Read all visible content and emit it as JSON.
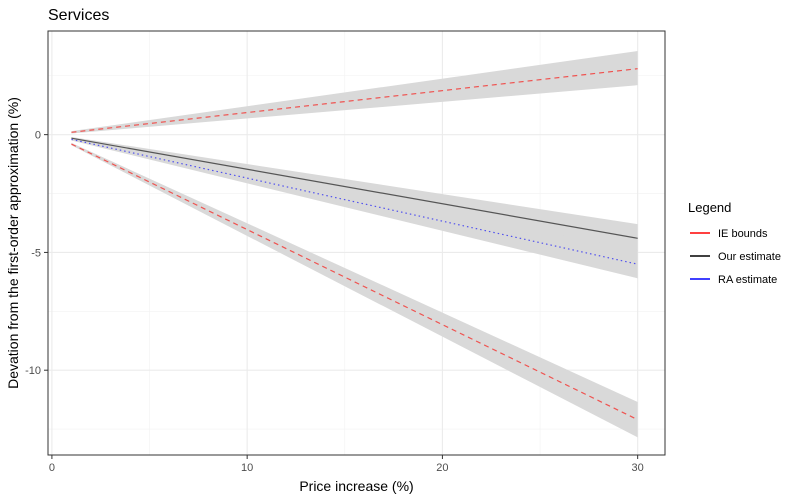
{
  "chart_data": {
    "type": "line",
    "title": "Services",
    "xlabel": "Price increase (%)",
    "ylabel": "Devation from the first-order approximation (%)",
    "xlim": [
      -0.2,
      31.4
    ],
    "ylim": [
      -13.6,
      4.4
    ],
    "x_ticks": [
      0,
      10,
      20,
      30
    ],
    "x_tick_labels": [
      "0",
      "10",
      "20",
      "30"
    ],
    "y_ticks": [
      -10,
      -5,
      0
    ],
    "y_tick_labels": [
      "-10",
      "-5",
      "0"
    ],
    "grid": true,
    "legend": {
      "title": "Legend",
      "position": "right",
      "entries": [
        {
          "label": "IE bounds",
          "color": "#ff0000"
        },
        {
          "label": "Our estimate",
          "color": "#000000"
        },
        {
          "label": "RA estimate",
          "color": "#0000ff"
        }
      ]
    },
    "x": [
      1,
      30
    ],
    "series": [
      {
        "name": "IE bounds",
        "style": "dashed",
        "color": "#ef5350",
        "values": [
          0.1,
          2.8
        ],
        "band_lower": [
          0.05,
          2.1
        ],
        "band_upper": [
          0.15,
          3.55
        ]
      },
      {
        "name": "IE bounds",
        "style": "dashed",
        "color": "#ef5350",
        "values": [
          -0.4,
          -12.1
        ],
        "band_lower": [
          -0.45,
          -12.85
        ],
        "band_upper": [
          -0.35,
          -11.35
        ]
      },
      {
        "name": "Our estimate",
        "style": "solid",
        "color": "#555555",
        "values": [
          -0.15,
          -4.4
        ],
        "band_lower": [
          -0.2,
          -4.95
        ],
        "band_upper": [
          -0.1,
          -3.8
        ]
      },
      {
        "name": "RA estimate",
        "style": "dotted",
        "color": "#5050ee",
        "values": [
          -0.2,
          -5.5
        ],
        "band_lower": [
          -0.25,
          -6.1
        ],
        "band_upper": [
          -0.15,
          -4.9
        ]
      }
    ]
  }
}
